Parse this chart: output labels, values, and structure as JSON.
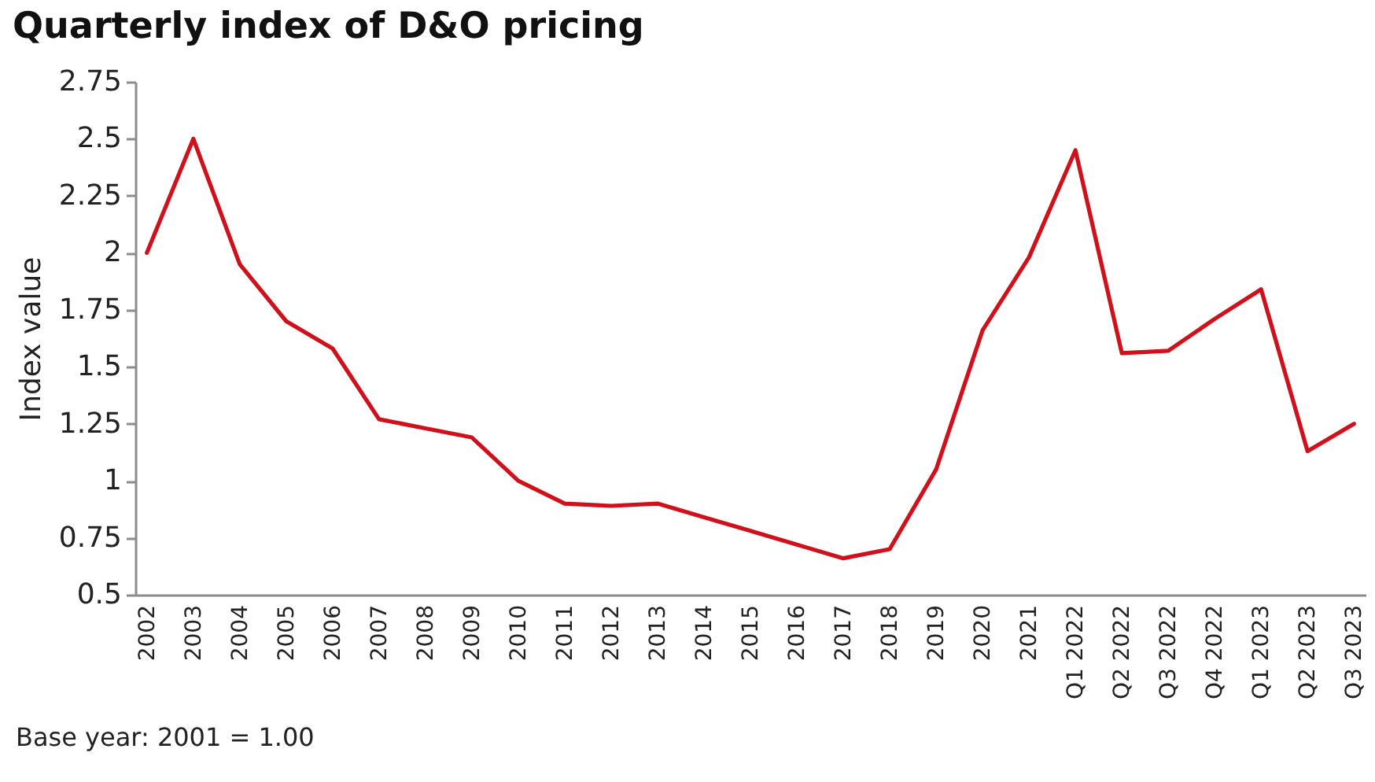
{
  "chart_data": {
    "type": "line",
    "title": "Quarterly index of D&O pricing",
    "ylabel": "Index value",
    "annotations": [
      "Base year: 2001 = 1.00"
    ],
    "categories": [
      "2002",
      "2003",
      "2004",
      "2005",
      "2006",
      "2007",
      "2008",
      "2009",
      "2010",
      "2011",
      "2012",
      "2013",
      "2014",
      "2015",
      "2016",
      "2017",
      "2018",
      "2019",
      "2020",
      "2021",
      "Q1 2022",
      "Q2 2022",
      "Q3 2022",
      "Q4 2022",
      "Q1 2023",
      "Q2 2023",
      "Q3 2023"
    ],
    "series": [
      {
        "color": "#d0111b",
        "values": [
          2.0,
          2.5,
          1.95,
          1.7,
          1.58,
          1.27,
          1.23,
          1.19,
          1.0,
          0.9,
          0.89,
          0.9,
          0.84,
          0.78,
          0.72,
          0.66,
          0.7,
          1.05,
          1.66,
          1.98,
          2.45,
          1.56,
          1.57,
          1.71,
          1.84,
          1.13,
          1.25
        ]
      }
    ],
    "ylim": [
      0.5,
      2.75
    ],
    "yticks": [
      0.5,
      0.75,
      1,
      1.25,
      1.5,
      1.75,
      2,
      2.25,
      2.5,
      2.75
    ],
    "grid": false
  }
}
